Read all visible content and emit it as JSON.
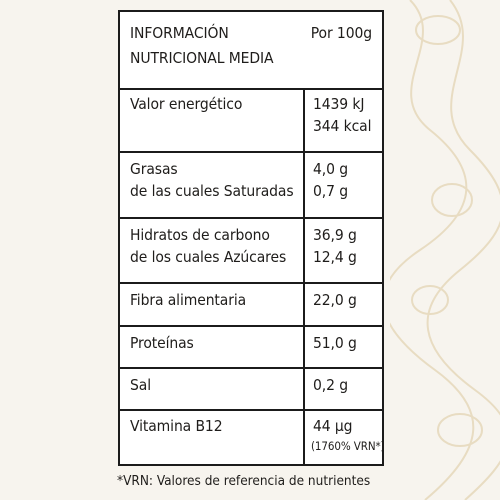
{
  "header": {
    "title_line1": "INFORMACIÓN",
    "title_line2": "NUTRICIONAL MEDIA",
    "per": "Por 100g"
  },
  "rows": [
    {
      "lines": [
        "Valor energético"
      ],
      "values": [
        "1439 kJ",
        "344 kcal"
      ]
    },
    {
      "lines": [
        "Grasas",
        "de las cuales Saturadas"
      ],
      "values": [
        "4,0 g",
        "0,7 g"
      ]
    },
    {
      "lines": [
        "Hidratos de carbono",
        "de los cuales Azúcares"
      ],
      "values": [
        "36,9 g",
        "12,4 g"
      ]
    },
    {
      "lines": [
        "Fibra alimentaria"
      ],
      "values": [
        "22,0 g"
      ]
    },
    {
      "lines": [
        "Proteínas"
      ],
      "values": [
        "51,0 g"
      ]
    },
    {
      "lines": [
        "Sal"
      ],
      "values": [
        "0,2 g"
      ]
    },
    {
      "lines": [
        "Vitamina B12"
      ],
      "values": [
        "44 µg"
      ],
      "note": "(1760% VRN*)"
    }
  ],
  "footnote": "*VRN: Valores de referencia de nutrientes"
}
